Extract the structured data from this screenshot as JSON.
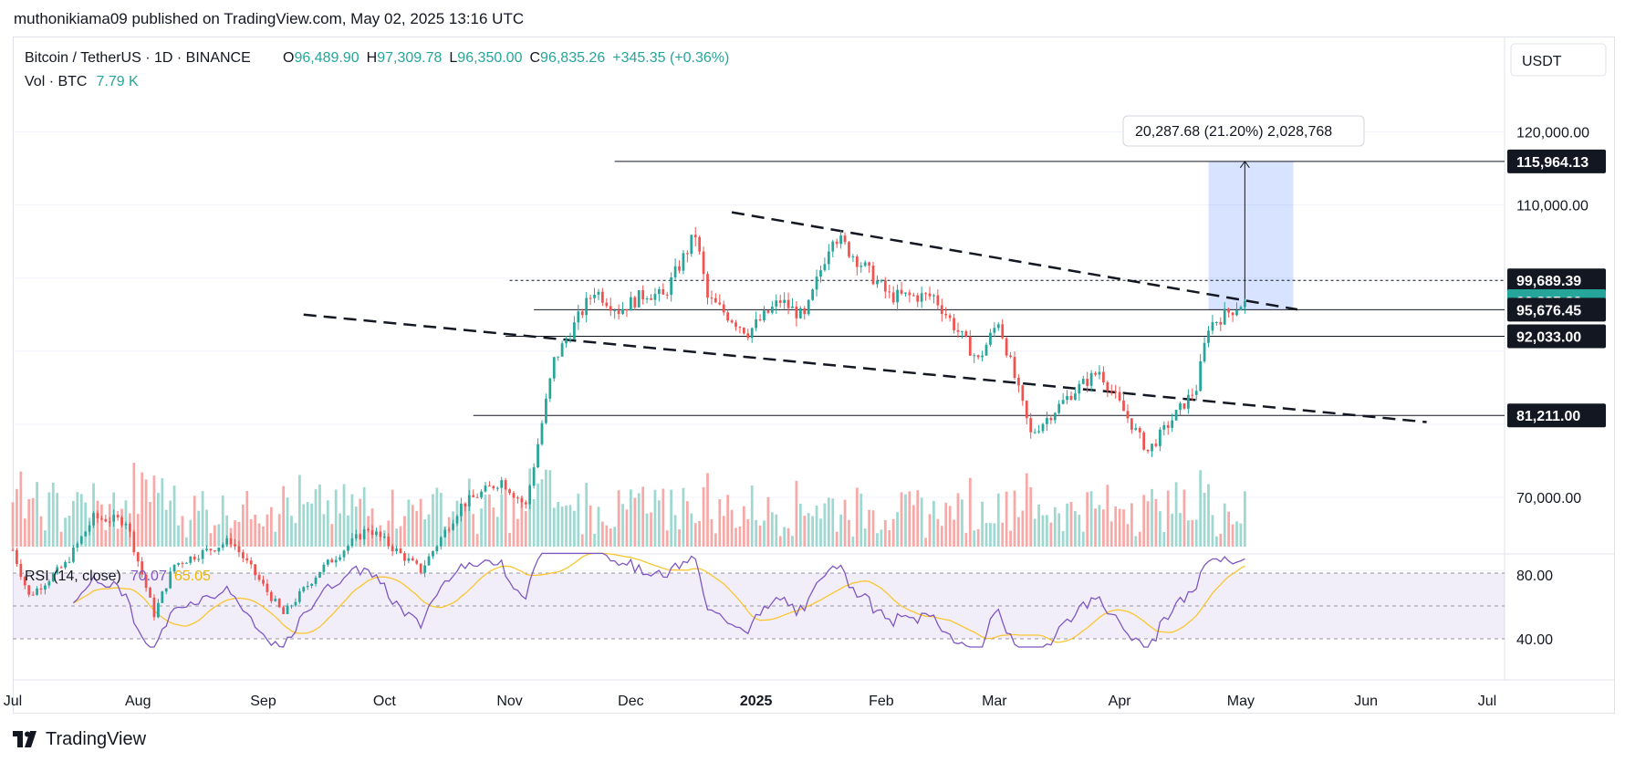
{
  "header": {
    "published_line": "muthonikiama09 published on TradingView.com, May 02, 2025 13:16 UTC"
  },
  "legend": {
    "symbol": "Bitcoin / TetherUS · 1D · BINANCE",
    "o_label": "O",
    "o_value": "96,489.90",
    "h_label": "H",
    "h_value": "97,309.78",
    "l_label": "L",
    "l_value": "96,350.00",
    "c_label": "C",
    "c_value": "96,835.26",
    "change": "+345.35 (+0.36%)",
    "vol_label": "Vol · BTC",
    "vol_value": "7.79 K"
  },
  "currency_button": "USDT",
  "measure_label": "20,287.68 (21.20%) 2,028,768",
  "rsi_legend": {
    "label": "RSI (14, close)",
    "rsi_value": "70.07",
    "ma_value": "65.05"
  },
  "footer": {
    "brand": "TradingView"
  },
  "colors": {
    "up": "#26a69a",
    "down": "#ef5350",
    "vol_up": "#9ed8d1",
    "vol_down": "#f7a9a7",
    "rsi_line": "#7e57c2",
    "rsi_ma": "#f9c631",
    "rsi_band": "rgba(126,87,194,0.10)",
    "price_badge": "#131722",
    "current_badge": "#26a69a",
    "measure_fill": "rgba(41,98,255,0.18)"
  },
  "chart_data": {
    "type": "candlestick",
    "symbol": "BTCUSDT",
    "timeframe": "1D",
    "price_axis": {
      "ticks": [
        "70,000.00",
        "110,000.00",
        "120,000.00"
      ]
    },
    "price_labels": [
      {
        "value": 115964.13,
        "label": "115,964.13",
        "kind": "level"
      },
      {
        "value": 99689.39,
        "label": "99,689.39",
        "kind": "level"
      },
      {
        "value": 96835.26,
        "label": "96,835.26",
        "kind": "current"
      },
      {
        "value": 95676.45,
        "label": "95,676.45",
        "kind": "level"
      },
      {
        "value": 92033.0,
        "label": "92,033.00",
        "kind": "level"
      },
      {
        "value": 81211.0,
        "label": "81,211.00",
        "kind": "level"
      }
    ],
    "time_axis": {
      "labels": [
        {
          "date": "2024-07-01",
          "label": "Jul"
        },
        {
          "date": "2024-08-01",
          "label": "Aug"
        },
        {
          "date": "2024-09-01",
          "label": "Sep"
        },
        {
          "date": "2024-10-01",
          "label": "Oct"
        },
        {
          "date": "2024-11-01",
          "label": "Nov"
        },
        {
          "date": "2024-12-01",
          "label": "Dec"
        },
        {
          "date": "2025-01-01",
          "label": "2025",
          "bold": true
        },
        {
          "date": "2025-02-01",
          "label": "Feb"
        },
        {
          "date": "2025-03-01",
          "label": "Mar"
        },
        {
          "date": "2025-04-01",
          "label": "Apr"
        },
        {
          "date": "2025-05-01",
          "label": "May"
        },
        {
          "date": "2025-06-01",
          "label": "Jun"
        },
        {
          "date": "2025-07-01",
          "label": "Jul"
        }
      ]
    },
    "price_path": [
      [
        "2024-07-01",
        62800
      ],
      [
        "2024-07-05",
        56500
      ],
      [
        "2024-07-14",
        60800
      ],
      [
        "2024-07-21",
        67200
      ],
      [
        "2024-07-29",
        66800
      ],
      [
        "2024-08-05",
        54000
      ],
      [
        "2024-08-10",
        60800
      ],
      [
        "2024-08-24",
        64100
      ],
      [
        "2024-09-06",
        54000
      ],
      [
        "2024-09-15",
        60000
      ],
      [
        "2024-09-27",
        65800
      ],
      [
        "2024-10-10",
        60000
      ],
      [
        "2024-10-20",
        68900
      ],
      [
        "2024-10-30",
        72300
      ],
      [
        "2024-11-05",
        68800
      ],
      [
        "2024-11-12",
        88700
      ],
      [
        "2024-11-22",
        98400
      ],
      [
        "2024-11-28",
        95600
      ],
      [
        "2024-12-05",
        98000
      ],
      [
        "2024-12-09",
        97400
      ],
      [
        "2024-12-17",
        106000
      ],
      [
        "2024-12-20",
        97200
      ],
      [
        "2024-12-30",
        92600
      ],
      [
        "2025-01-07",
        96900
      ],
      [
        "2025-01-13",
        94500
      ],
      [
        "2025-01-20",
        106100
      ],
      [
        "2025-01-27",
        102000
      ],
      [
        "2025-02-03",
        97500
      ],
      [
        "2025-02-14",
        97500
      ],
      [
        "2025-02-25",
        88700
      ],
      [
        "2025-03-02",
        94200
      ],
      [
        "2025-03-10",
        78600
      ],
      [
        "2025-03-20",
        84200
      ],
      [
        "2025-03-27",
        87300
      ],
      [
        "2025-04-08",
        76300
      ],
      [
        "2025-04-20",
        85000
      ],
      [
        "2025-04-23",
        93500
      ],
      [
        "2025-05-02",
        96835
      ]
    ],
    "rsi": {
      "length": 14,
      "source": "close",
      "upper_band": 70,
      "lower_band": 30,
      "mid": 50,
      "axis_ticks": [
        "80.00",
        "40.00"
      ],
      "last_rsi": 70.07,
      "last_ma": 65.05
    },
    "drawings": [
      {
        "type": "trendline",
        "style": "dashed",
        "from": [
          "2024-12-26",
          109000
        ],
        "to": [
          "2025-05-15",
          95700
        ]
      },
      {
        "type": "trendline",
        "style": "dashed",
        "from": [
          "2024-09-11",
          95000
        ],
        "to": [
          "2025-06-16",
          80300
        ]
      },
      {
        "type": "horizontal",
        "value": 115964.13,
        "from": "2024-11-27"
      },
      {
        "type": "horizontal",
        "value": 99689.39,
        "from": "2024-11-01",
        "style": "dotted"
      },
      {
        "type": "horizontal",
        "value": 95676.45,
        "from": "2024-11-07"
      },
      {
        "type": "horizontal",
        "value": 92033.0,
        "from": "2024-10-31"
      },
      {
        "type": "horizontal",
        "value": 81211.0,
        "from": "2024-10-23"
      },
      {
        "type": "measure",
        "from_date": "2025-04-23",
        "to_date": "2025-05-14",
        "from_price": 95676.45,
        "to_price": 115964.13
      }
    ]
  }
}
